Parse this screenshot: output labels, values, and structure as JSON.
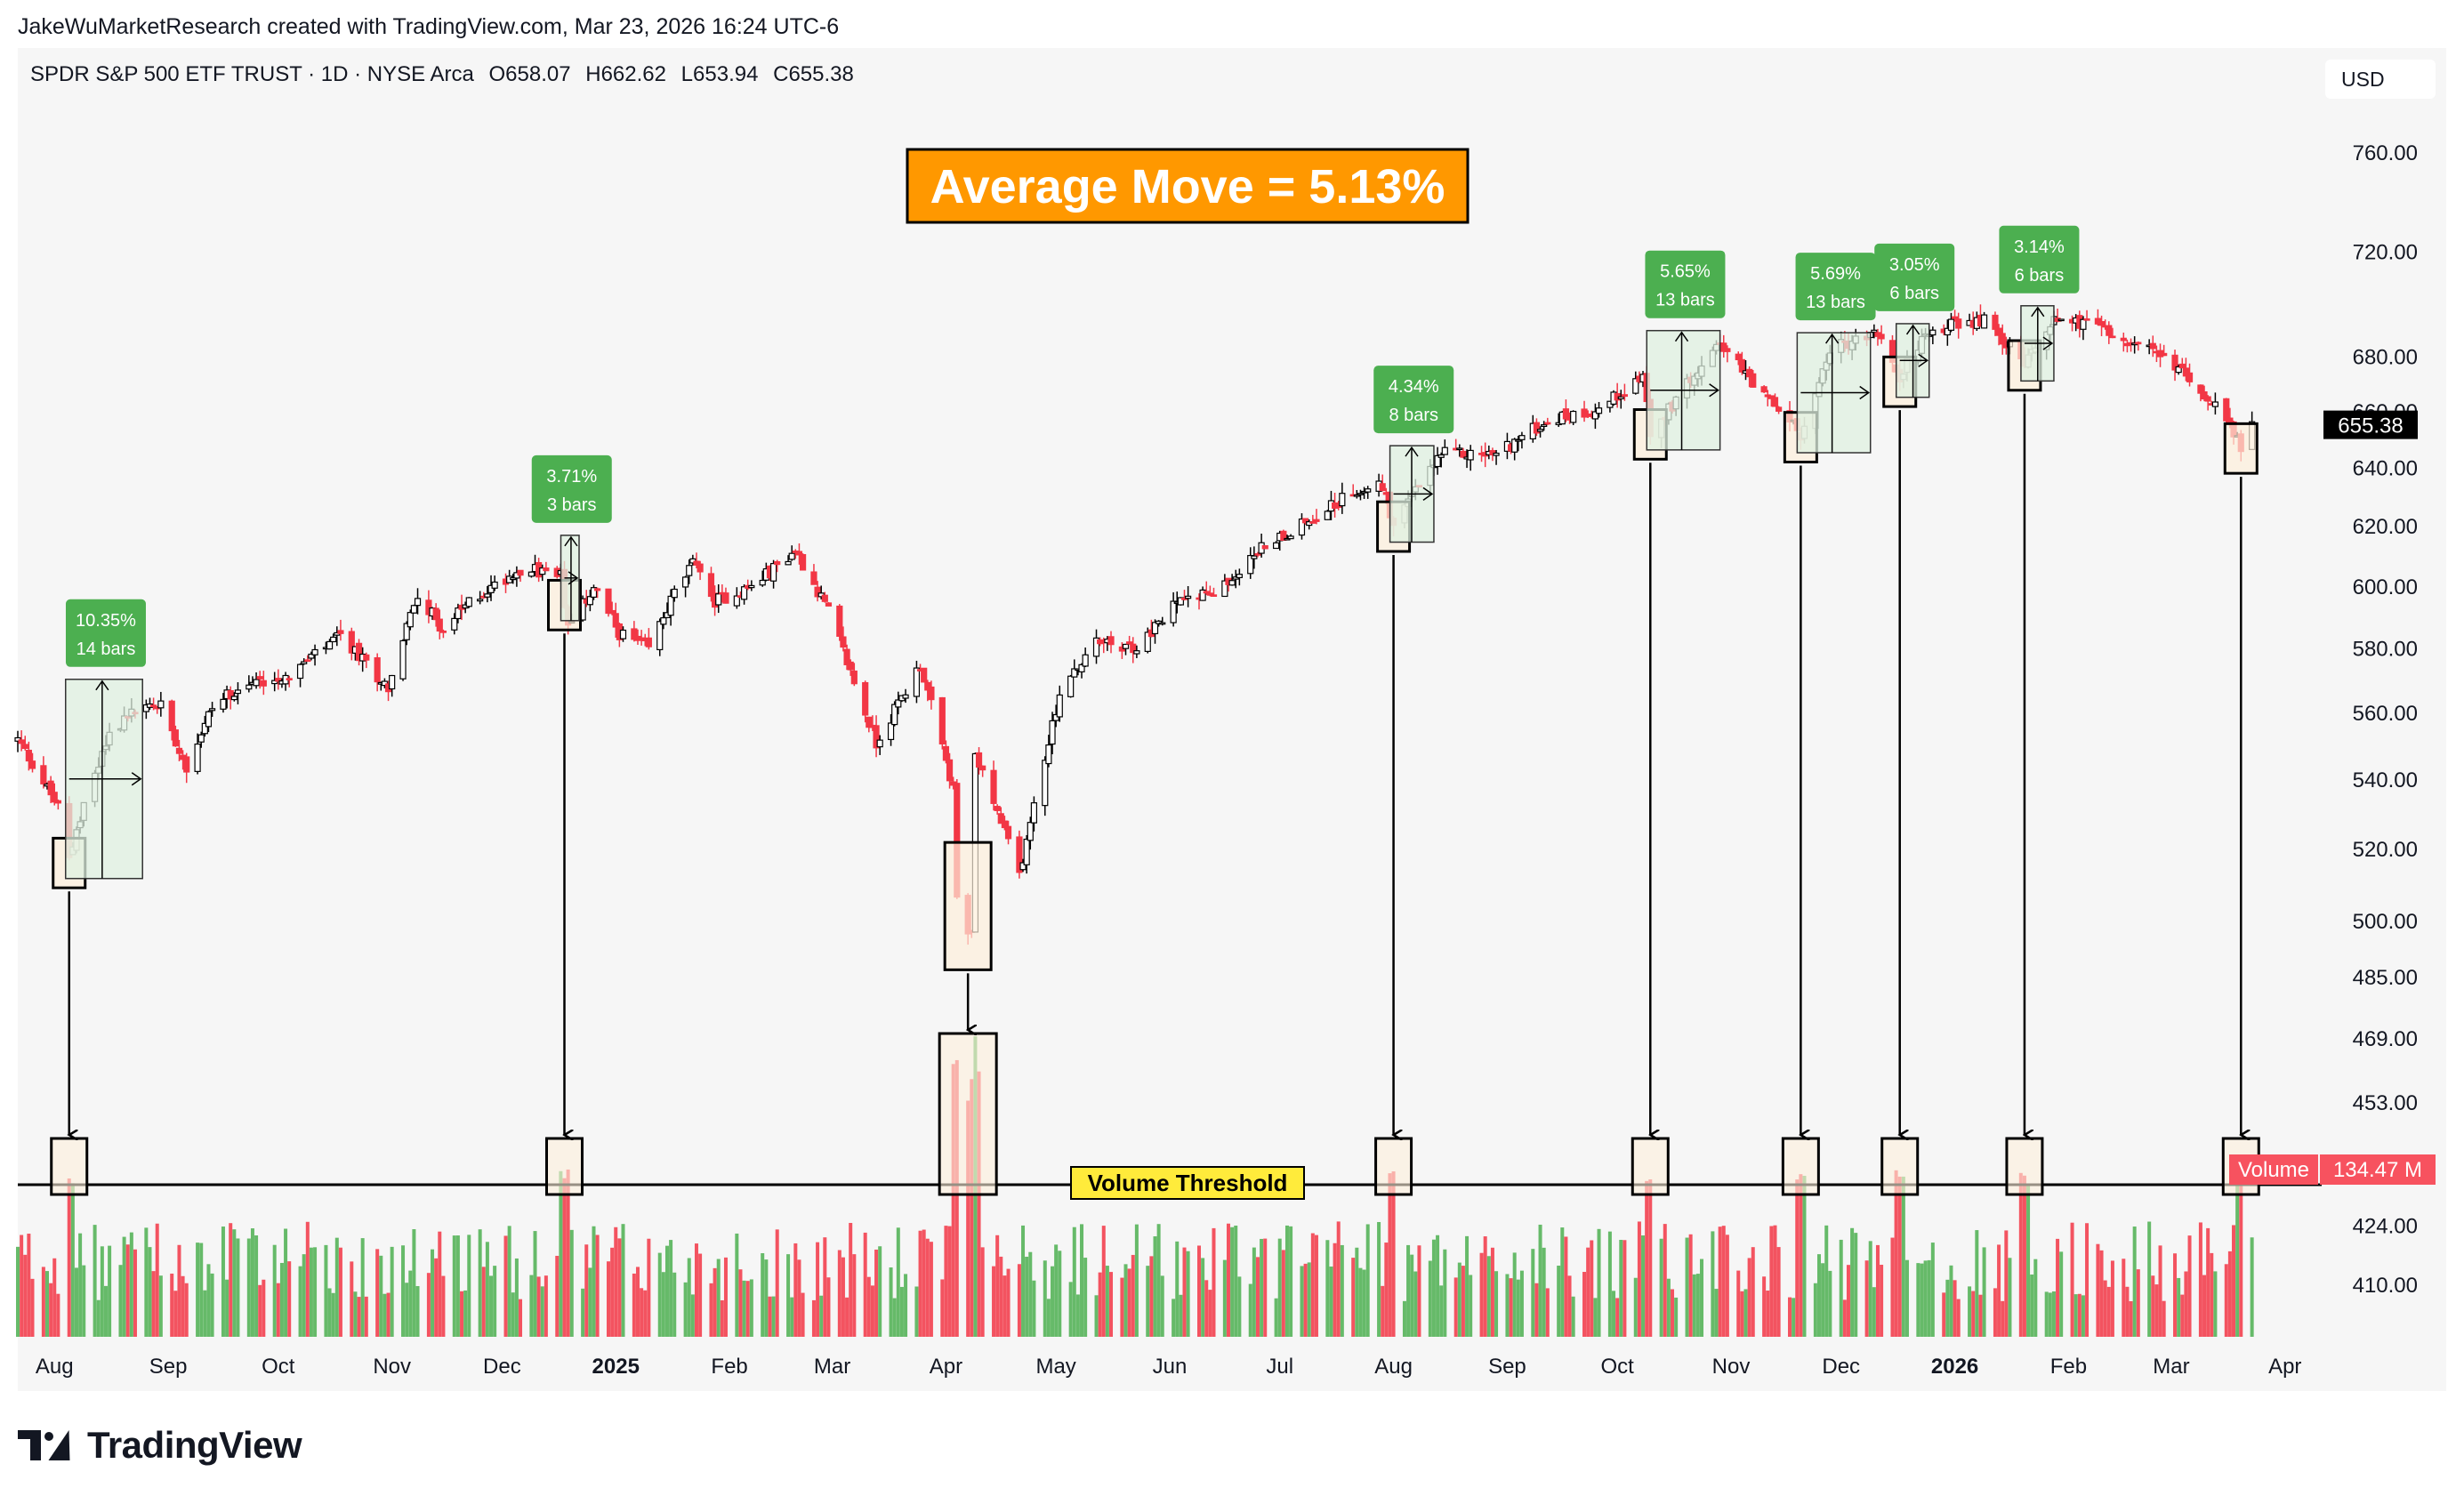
{
  "header": {
    "credit": "JakeWuMarketResearch created with TradingView.com, Mar 23, 2026 16:24 UTC-6",
    "symbol": "SPDR S&P 500 ETF TRUST · 1D · NYSE Arca",
    "open": "O658.07",
    "high": "H662.62",
    "low": "L653.94",
    "close": "C655.38",
    "currency": "USD"
  },
  "footer": {
    "brand": "TradingView"
  },
  "chart_data": {
    "type": "candlestick",
    "title": "Average Move = 5.13%",
    "volume_threshold_label": "Volume Threshold",
    "current_price_label": "655.38",
    "volume_label": "Volume",
    "volume_value": "134.47 M",
    "y_scale": "log",
    "y_ticks": [
      760,
      720,
      680,
      660,
      640,
      620,
      600,
      580,
      560,
      540,
      520,
      500,
      485,
      469,
      453,
      424,
      410
    ],
    "y_tick_labels": [
      "760.00",
      "720.00",
      "680.00",
      "660.00",
      "640.00",
      "620.00",
      "600.00",
      "580.00",
      "560.00",
      "540.00",
      "520.00",
      "500.00",
      "485.00",
      "469.00",
      "453.00",
      "424.00",
      "410.00"
    ],
    "x_range": [
      "2024-07-22",
      "2026-04-11"
    ],
    "x_ticks": [
      {
        "date": "2024-08-01",
        "label": "Aug",
        "bold": false
      },
      {
        "date": "2024-09-01",
        "label": "Sep",
        "bold": false
      },
      {
        "date": "2024-10-01",
        "label": "Oct",
        "bold": false
      },
      {
        "date": "2024-11-01",
        "label": "Nov",
        "bold": false
      },
      {
        "date": "2024-12-01",
        "label": "Dec",
        "bold": false
      },
      {
        "date": "2025-01-01",
        "label": "2025",
        "bold": true
      },
      {
        "date": "2025-02-01",
        "label": "Feb",
        "bold": false
      },
      {
        "date": "2025-03-01",
        "label": "Mar",
        "bold": false
      },
      {
        "date": "2025-04-01",
        "label": "Apr",
        "bold": false
      },
      {
        "date": "2025-05-01",
        "label": "May",
        "bold": false
      },
      {
        "date": "2025-06-01",
        "label": "Jun",
        "bold": false
      },
      {
        "date": "2025-07-01",
        "label": "Jul",
        "bold": false
      },
      {
        "date": "2025-08-01",
        "label": "Aug",
        "bold": false
      },
      {
        "date": "2025-09-01",
        "label": "Sep",
        "bold": false
      },
      {
        "date": "2025-10-01",
        "label": "Oct",
        "bold": false
      },
      {
        "date": "2025-11-01",
        "label": "Nov",
        "bold": false
      },
      {
        "date": "2025-12-01",
        "label": "Dec",
        "bold": false
      },
      {
        "date": "2026-01-01",
        "label": "2026",
        "bold": true
      },
      {
        "date": "2026-02-01",
        "label": "Feb",
        "bold": false
      },
      {
        "date": "2026-03-01",
        "label": "Mar",
        "bold": false
      },
      {
        "date": "2026-04-01",
        "label": "Apr",
        "bold": false
      }
    ],
    "price_path": [
      [
        "2024-07-22",
        552
      ],
      [
        "2024-07-26",
        545
      ],
      [
        "2024-08-02",
        532
      ],
      [
        "2024-08-05",
        517
      ],
      [
        "2024-08-09",
        533
      ],
      [
        "2024-08-16",
        554
      ],
      [
        "2024-08-23",
        561
      ],
      [
        "2024-08-30",
        563
      ],
      [
        "2024-09-06",
        544
      ],
      [
        "2024-09-13",
        562
      ],
      [
        "2024-09-20",
        568
      ],
      [
        "2024-10-04",
        572
      ],
      [
        "2024-10-18",
        584
      ],
      [
        "2024-10-31",
        568
      ],
      [
        "2024-11-08",
        598
      ],
      [
        "2024-11-15",
        586
      ],
      [
        "2024-11-22",
        595
      ],
      [
        "2024-12-06",
        606
      ],
      [
        "2024-12-17",
        604
      ],
      [
        "2024-12-19",
        586
      ],
      [
        "2024-12-26",
        600
      ],
      [
        "2025-01-02",
        585
      ],
      [
        "2025-01-10",
        580
      ],
      [
        "2025-01-17",
        598
      ],
      [
        "2025-01-23",
        609
      ],
      [
        "2025-01-27",
        595
      ],
      [
        "2025-02-07",
        600
      ],
      [
        "2025-02-19",
        612
      ],
      [
        "2025-02-28",
        592
      ],
      [
        "2025-03-10",
        560
      ],
      [
        "2025-03-13",
        551
      ],
      [
        "2025-03-25",
        575
      ],
      [
        "2025-04-03",
        537
      ],
      [
        "2025-04-04",
        505
      ],
      [
        "2025-04-08",
        496
      ],
      [
        "2025-04-09",
        548
      ],
      [
        "2025-04-21",
        513
      ],
      [
        "2025-05-02",
        566
      ],
      [
        "2025-05-12",
        582
      ],
      [
        "2025-05-23",
        580
      ],
      [
        "2025-06-06",
        599
      ],
      [
        "2025-06-13",
        597
      ],
      [
        "2025-06-27",
        614
      ],
      [
        "2025-07-10",
        623
      ],
      [
        "2025-07-28",
        637
      ],
      [
        "2025-08-01",
        621
      ],
      [
        "2025-08-14",
        645
      ],
      [
        "2025-08-29",
        645
      ],
      [
        "2025-09-12",
        657
      ],
      [
        "2025-09-26",
        661
      ],
      [
        "2025-10-08",
        673
      ],
      [
        "2025-10-10",
        653
      ],
      [
        "2025-10-17",
        664
      ],
      [
        "2025-10-28",
        687
      ],
      [
        "2025-11-07",
        670
      ],
      [
        "2025-11-20",
        652
      ],
      [
        "2025-11-28",
        683
      ],
      [
        "2025-12-11",
        689
      ],
      [
        "2025-12-17",
        672
      ],
      [
        "2025-12-24",
        690
      ],
      [
        "2026-01-09",
        694
      ],
      [
        "2026-01-20",
        678
      ],
      [
        "2026-01-28",
        695
      ],
      [
        "2026-02-12",
        690
      ],
      [
        "2026-02-24",
        682
      ],
      [
        "2026-03-06",
        673
      ],
      [
        "2026-03-13",
        662
      ],
      [
        "2026-03-20",
        648
      ],
      [
        "2026-03-23",
        655.38
      ]
    ],
    "signals": [
      {
        "date": "2024-08-05",
        "pct": "10.35%",
        "bars": "14 bars",
        "days": 20
      },
      {
        "date": "2024-12-18",
        "pct": "3.71%",
        "bars": "3 bars",
        "days": 4
      },
      {
        "date": "2025-04-07",
        "pct": "",
        "bars": "",
        "days": 0
      },
      {
        "date": "2025-08-01",
        "pct": "4.34%",
        "bars": "8 bars",
        "days": 11
      },
      {
        "date": "2025-10-10",
        "pct": "5.65%",
        "bars": "13 bars",
        "days": 19
      },
      {
        "date": "2025-11-20",
        "pct": "5.69%",
        "bars": "13 bars",
        "days": 19
      },
      {
        "date": "2025-12-17",
        "pct": "3.05%",
        "bars": "6 bars",
        "days": 8
      },
      {
        "date": "2026-01-20",
        "pct": "3.14%",
        "bars": "6 bars",
        "days": 8
      },
      {
        "date": "2026-03-20",
        "pct": "",
        "bars": "",
        "days": 0
      }
    ],
    "colors": {
      "up": "#4caf50",
      "down": "#f23645",
      "label_green": "#4caf50",
      "title_bg": "#ff9800",
      "threshold_label_bg": "#ffeb3b",
      "volume_tag_bg": "#f7525f",
      "price_tag_bg": "#000000",
      "highlight_fill": "#fdf0dc",
      "target_fill": "#dff0e0"
    }
  }
}
